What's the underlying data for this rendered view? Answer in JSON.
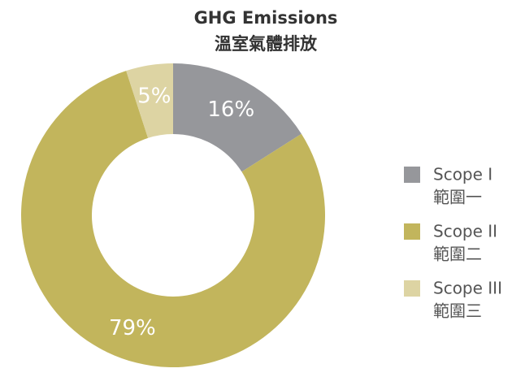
{
  "chart_data": {
    "type": "donut",
    "title": [
      "GHG Emissions",
      "溫室氣體排放"
    ],
    "categories": [
      [
        "Scope I",
        "範圍一"
      ],
      [
        "Scope II",
        "範圍二"
      ],
      [
        "Scope III",
        "範圍三"
      ]
    ],
    "values": [
      16,
      79,
      5
    ],
    "value_labels": [
      "16%",
      "79%",
      "5%"
    ],
    "colors": [
      "#96979b",
      "#c2b55c",
      "#ddd4a3"
    ],
    "legend": "right"
  }
}
